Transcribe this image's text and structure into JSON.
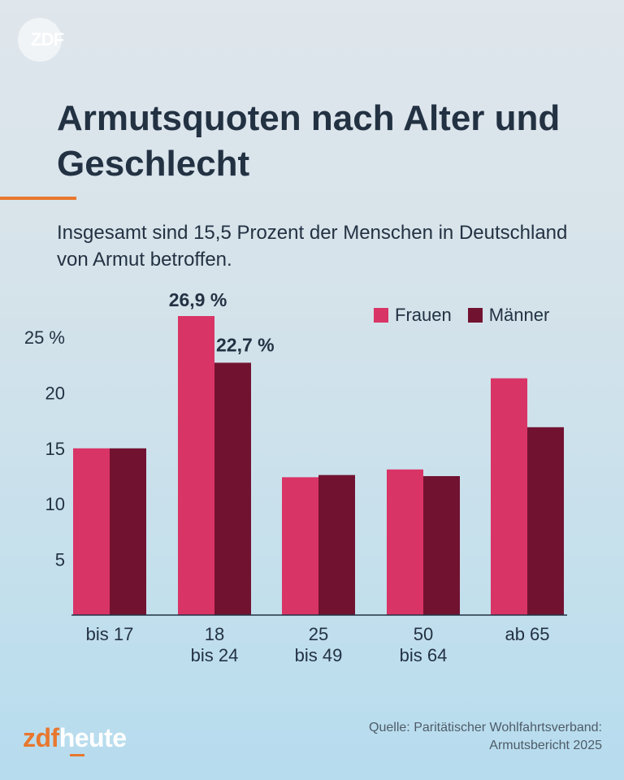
{
  "header": {
    "logo_text": "ZDF",
    "title": "Armutsquoten nach Alter und Geschlecht",
    "subtitle": "Insgesamt sind 15,5 Prozent der Menschen in Deutschland von Armut betroffen."
  },
  "colors": {
    "accent": "#e8772e",
    "frauen": "#d93466",
    "maenner": "#721231",
    "text": "#233243"
  },
  "chart_data": {
    "type": "bar",
    "categories": [
      "bis 17",
      "18 bis 24",
      "25 bis 49",
      "50 bis 64",
      "ab 65"
    ],
    "category_lines": [
      [
        "bis 17"
      ],
      [
        "18",
        "bis 24"
      ],
      [
        "25",
        "bis 49"
      ],
      [
        "50",
        "bis 64"
      ],
      [
        "ab 65"
      ]
    ],
    "series": [
      {
        "name": "Frauen",
        "values": [
          15.0,
          26.9,
          12.4,
          13.1,
          21.3
        ]
      },
      {
        "name": "Männer",
        "values": [
          15.0,
          22.7,
          12.6,
          12.5,
          16.9
        ]
      }
    ],
    "ylim": [
      0,
      26.9
    ],
    "yticks": [
      5,
      10,
      15,
      20,
      25
    ],
    "ytick_labels": [
      "5",
      "10",
      "15",
      "20",
      "25 %"
    ],
    "data_labels": [
      {
        "series": 0,
        "index": 1,
        "text": "26,9 %"
      },
      {
        "series": 1,
        "index": 1,
        "text": "22,7 %"
      }
    ],
    "legend": "top-right",
    "grid": false
  },
  "footer": {
    "source_line1": "Quelle: Paritätischer Wohlfahrtsverband:",
    "source_line2": "Armutsbericht 2025",
    "brand_zdf": "zdf",
    "brand_heute": "heute"
  }
}
